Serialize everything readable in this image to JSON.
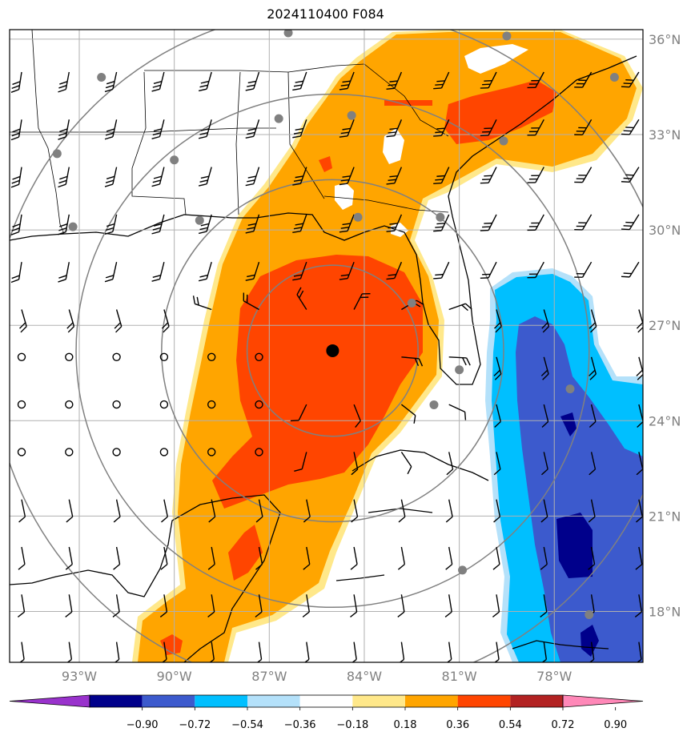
{
  "title": "2024110400 F084",
  "map": {
    "lon_labels": [
      "93°W",
      "90°W",
      "87°W",
      "84°W",
      "81°W",
      "78°W"
    ],
    "lon_values": [
      -93,
      -90,
      -87,
      -84,
      -81,
      -78
    ],
    "lat_labels": [
      "36°N",
      "33°N",
      "30°N",
      "27°N",
      "24°N",
      "21°N",
      "18°N"
    ],
    "lat_values": [
      36,
      33,
      30,
      27,
      24,
      21,
      18
    ],
    "extent": {
      "lon_min": -95.2,
      "lon_max": -75.2,
      "lat_min": 16.4,
      "lat_max": 36.3
    },
    "storm_center": {
      "lon": -85.0,
      "lat": 26.2
    },
    "range_rings_deg": [
      2.7,
      5.4,
      8.1,
      10.8
    ],
    "colors": {
      "grid": "#b0b0b0",
      "rings": "#808080",
      "coast": "#000000",
      "tick_text": "#808080",
      "station": "#808080"
    }
  },
  "stations": [
    {
      "lon": -86.4,
      "lat": 36.2
    },
    {
      "lon": -79.5,
      "lat": 36.1
    },
    {
      "lon": -92.3,
      "lat": 34.8
    },
    {
      "lon": -76.1,
      "lat": 34.8
    },
    {
      "lon": -84.4,
      "lat": 33.6
    },
    {
      "lon": -86.7,
      "lat": 33.5
    },
    {
      "lon": -79.6,
      "lat": 32.8
    },
    {
      "lon": -93.7,
      "lat": 32.4
    },
    {
      "lon": -90.0,
      "lat": 32.2
    },
    {
      "lon": -89.2,
      "lat": 30.3
    },
    {
      "lon": -84.2,
      "lat": 30.4
    },
    {
      "lon": -81.6,
      "lat": 30.4
    },
    {
      "lon": -93.2,
      "lat": 30.1
    },
    {
      "lon": -82.5,
      "lat": 27.7
    },
    {
      "lon": -81.0,
      "lat": 25.6
    },
    {
      "lon": -77.5,
      "lat": 25.0
    },
    {
      "lon": -81.8,
      "lat": 24.5
    },
    {
      "lon": -80.9,
      "lat": 19.3
    },
    {
      "lon": -76.9,
      "lat": 17.9
    }
  ],
  "colorbar": {
    "tick_labels": [
      "−0.90",
      "−0.72",
      "−0.54",
      "−0.36",
      "−0.18",
      "0.18",
      "0.36",
      "0.54",
      "0.72",
      "0.90"
    ],
    "colors": [
      "#9932cc",
      "#00008b",
      "#3c5acd",
      "#00bfff",
      "#b4e1fa",
      "#ffffff",
      "#ffe88a",
      "#ffa500",
      "#ff4500",
      "#b22222",
      "#ff88b8"
    ]
  }
}
